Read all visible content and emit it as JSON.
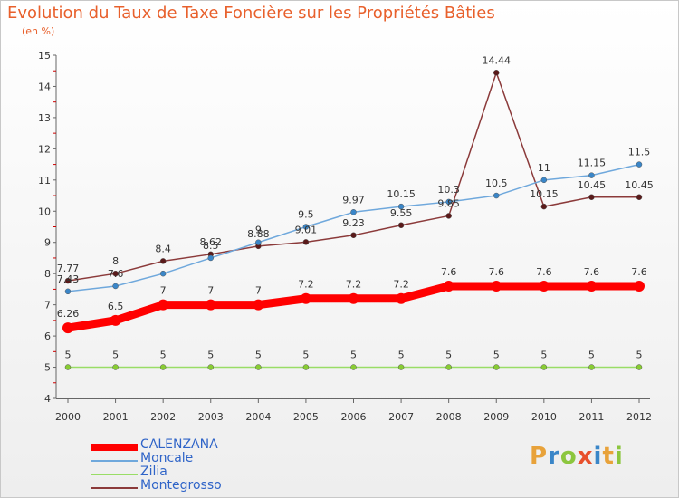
{
  "colors": {
    "title": "#e8602c",
    "legend_text": "#2f64c8"
  },
  "logo": {
    "letters": [
      {
        "ch": "P",
        "color": "#e8a23a"
      },
      {
        "ch": "r",
        "color": "#3a86c8"
      },
      {
        "ch": "o",
        "color": "#8cc63e"
      },
      {
        "ch": "x",
        "color": "#e8502c"
      },
      {
        "ch": "i",
        "color": "#3a86c8"
      },
      {
        "ch": "t",
        "color": "#e8a23a"
      },
      {
        "ch": "i",
        "color": "#8cc63e"
      }
    ]
  },
  "chart_data": {
    "type": "line",
    "title": "Evolution du Taux de Taxe Foncière sur les Propriétés Bâties",
    "unit_label": "(en %)",
    "xlabel": "",
    "ylabel": "",
    "x": [
      "2000",
      "2001",
      "2002",
      "2003",
      "2004",
      "2005",
      "2006",
      "2007",
      "2008",
      "2009",
      "2010",
      "2011",
      "2012"
    ],
    "ylim": [
      4,
      15
    ],
    "yticks": [
      4,
      5,
      6,
      7,
      8,
      9,
      10,
      11,
      12,
      13,
      14,
      15
    ],
    "grid": false,
    "legend": "bottom-left",
    "series": [
      {
        "name": "CALENZANA",
        "color": "#ff0000",
        "values": [
          6.26,
          6.5,
          7,
          7,
          7,
          7.2,
          7.2,
          7.2,
          7.6,
          7.6,
          7.6,
          7.6,
          7.6
        ],
        "labels": [
          "6.26",
          "6.5",
          "7",
          "7",
          "7",
          "7.2",
          "7.2",
          "7.2",
          "7.6",
          "7.6",
          "7.6",
          "7.6",
          "7.6"
        ]
      },
      {
        "name": "Moncale",
        "color": "#6fa8dc",
        "values": [
          7.43,
          7.6,
          8.0,
          8.5,
          9.0,
          9.5,
          9.97,
          10.15,
          10.3,
          10.5,
          11,
          11.15,
          11.5
        ],
        "labels": [
          "7.43",
          "7.6",
          "",
          "8.5",
          "9",
          "9.5",
          "9.97",
          "10.15",
          "10.3",
          "10.5",
          "11",
          "11.15",
          "11.5"
        ]
      },
      {
        "name": "Zilia",
        "color": "#99dd66",
        "values": [
          5,
          5,
          5,
          5,
          5,
          5,
          5,
          5,
          5,
          5,
          5,
          5,
          5
        ],
        "labels": [
          "5",
          "5",
          "5",
          "5",
          "5",
          "5",
          "5",
          "5",
          "5",
          "5",
          "5",
          "5",
          "5"
        ]
      },
      {
        "name": "Montegrosso",
        "color": "#8b3a3a",
        "values": [
          7.77,
          8,
          8.4,
          8.62,
          8.88,
          9.01,
          9.23,
          9.55,
          9.85,
          14.44,
          10.15,
          10.45,
          10.45
        ],
        "labels": [
          "7.77",
          "8",
          "8.4",
          "8.62",
          "8.88",
          "9.01",
          "9.23",
          "9.55",
          "9.85",
          "14.44",
          "10.15",
          "10.45",
          "10.45"
        ]
      }
    ]
  }
}
